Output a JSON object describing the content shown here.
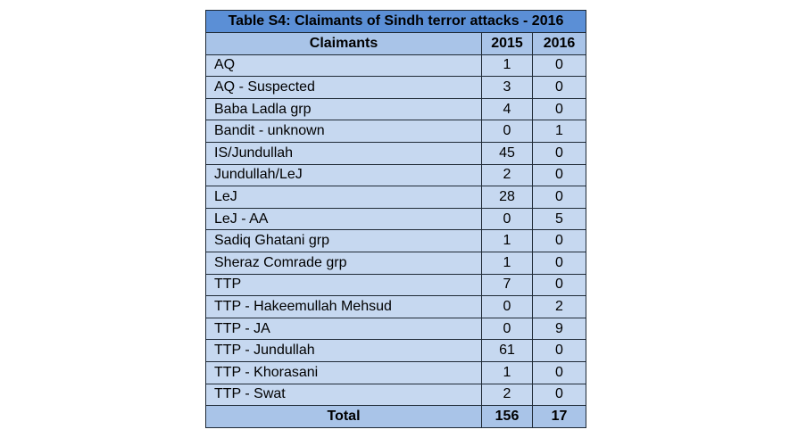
{
  "table": {
    "title": "Table S4: Claimants of Sindh terror attacks  - 2016",
    "headers": [
      "Claimants",
      "2015",
      "2016"
    ],
    "rows": [
      {
        "name": "AQ",
        "y2015": "1",
        "y2016": "0"
      },
      {
        "name": "AQ - Suspected",
        "y2015": "3",
        "y2016": "0"
      },
      {
        "name": "Baba Ladla grp",
        "y2015": "4",
        "y2016": "0"
      },
      {
        "name": "Bandit - unknown",
        "y2015": "0",
        "y2016": "1"
      },
      {
        "name": "IS/Jundullah",
        "y2015": "45",
        "y2016": "0"
      },
      {
        "name": "Jundullah/LeJ",
        "y2015": "2",
        "y2016": "0"
      },
      {
        "name": "LeJ",
        "y2015": "28",
        "y2016": "0"
      },
      {
        "name": "LeJ - AA",
        "y2015": "0",
        "y2016": "5"
      },
      {
        "name": "Sadiq Ghatani grp",
        "y2015": "1",
        "y2016": "0"
      },
      {
        "name": "Sheraz Comrade grp",
        "y2015": "1",
        "y2016": "0"
      },
      {
        "name": "TTP",
        "y2015": "7",
        "y2016": "0"
      },
      {
        "name": "TTP - Hakeemullah Mehsud",
        "y2015": "0",
        "y2016": "2"
      },
      {
        "name": "TTP - JA",
        "y2015": "0",
        "y2016": "9"
      },
      {
        "name": "TTP - Jundullah",
        "y2015": "61",
        "y2016": "0"
      },
      {
        "name": "TTP - Khorasani",
        "y2015": "1",
        "y2016": "0"
      },
      {
        "name": "TTP - Swat",
        "y2015": "2",
        "y2016": "0"
      }
    ],
    "total": {
      "label": "Total",
      "y2015": "156",
      "y2016": "17"
    }
  }
}
